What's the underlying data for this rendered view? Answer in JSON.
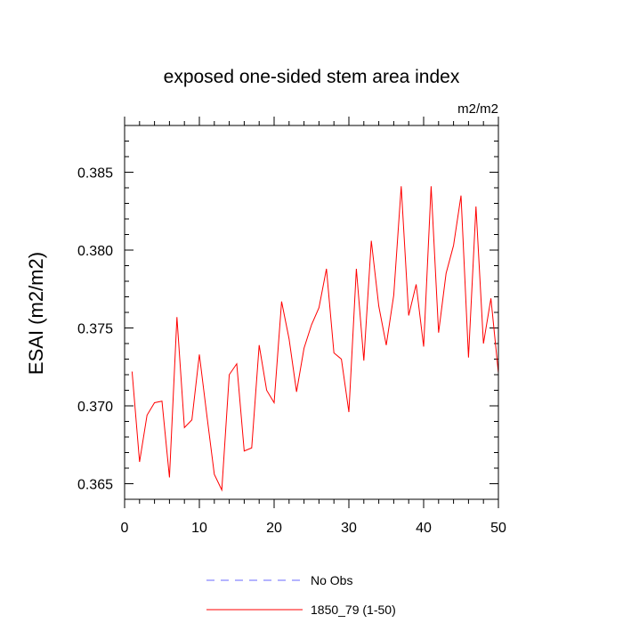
{
  "chart_data": {
    "type": "line",
    "title": "exposed one-sided stem area index",
    "units_label": "m2/m2",
    "xlabel": "",
    "ylabel": "ESAI  (m2/m2)",
    "xlim": [
      0,
      50
    ],
    "ylim": [
      0.364,
      0.388
    ],
    "x_ticks": [
      0,
      10,
      20,
      30,
      40,
      50
    ],
    "y_ticks": [
      0.365,
      0.37,
      0.375,
      0.38,
      0.385
    ],
    "y_tick_labels": [
      "0.365",
      "0.370",
      "0.375",
      "0.380",
      "0.385"
    ],
    "series": [
      {
        "name": "No Obs",
        "color": "#6a6aff",
        "style": "dashed",
        "x": [],
        "values": []
      },
      {
        "name": "1850_79 (1-50)",
        "color": "#ff0000",
        "style": "solid",
        "x": [
          1,
          2,
          3,
          4,
          5,
          6,
          7,
          8,
          9,
          10,
          11,
          12,
          13,
          14,
          15,
          16,
          17,
          18,
          19,
          20,
          21,
          22,
          23,
          24,
          25,
          26,
          27,
          28,
          29,
          30,
          31,
          32,
          33,
          34,
          35,
          36,
          37,
          38,
          39,
          40,
          41,
          42,
          43,
          44,
          45,
          46,
          47,
          48,
          49,
          50
        ],
        "values": [
          0.3722,
          0.3664,
          0.3694,
          0.3702,
          0.3703,
          0.3654,
          0.3757,
          0.3686,
          0.3691,
          0.3733,
          0.3694,
          0.3656,
          0.3646,
          0.372,
          0.3727,
          0.3671,
          0.3673,
          0.3739,
          0.371,
          0.3702,
          0.3767,
          0.3743,
          0.3709,
          0.3737,
          0.3752,
          0.3763,
          0.3788,
          0.3734,
          0.373,
          0.3696,
          0.3788,
          0.3729,
          0.3806,
          0.3764,
          0.3739,
          0.3771,
          0.3841,
          0.3758,
          0.3778,
          0.3738,
          0.3841,
          0.3747,
          0.3785,
          0.3803,
          0.3835,
          0.3731,
          0.3828,
          0.374,
          0.3769,
          0.3721
        ]
      }
    ],
    "legend": [
      {
        "label": "No Obs",
        "color": "#6a6aff",
        "style": "dashed"
      },
      {
        "label": "1850_79 (1-50)",
        "color": "#ff0000",
        "style": "solid"
      }
    ]
  }
}
